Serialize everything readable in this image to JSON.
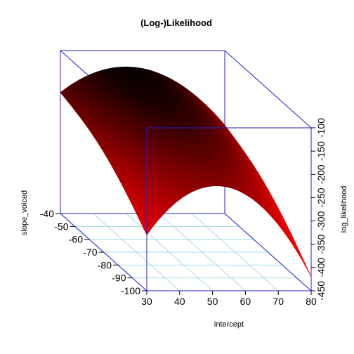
{
  "chart_data": {
    "type": "surface",
    "title": "(Log-)Likelihood",
    "xlabel": "intercept",
    "ylabel": "slope_voiced",
    "zlabel": "log_likelihood",
    "x_ticks": [
      "30",
      "40",
      "50",
      "60",
      "70",
      "80"
    ],
    "y_ticks": [
      "-40",
      "-50",
      "-60",
      "-70",
      "-80",
      "-90",
      "-100"
    ],
    "z_ticks": [
      "-100",
      "-150",
      "-200",
      "-250",
      "-300",
      "-350",
      "-400",
      "-450"
    ],
    "xlim": [
      30,
      80
    ],
    "ylim": [
      -100,
      -40
    ],
    "zlim": [
      -450,
      -100
    ],
    "corner_values": [
      {
        "x": 30,
        "y": -100,
        "z": -330
      },
      {
        "x": 80,
        "y": -100,
        "z": -420
      },
      {
        "x": 30,
        "y": -40,
        "z": -190
      },
      {
        "x": 80,
        "y": -40,
        "z": -260
      }
    ],
    "peak_values": [
      {
        "x": 50,
        "y": -100,
        "z": -225
      },
      {
        "x": 50,
        "y": -40,
        "z": -135
      }
    ],
    "colors": {
      "box": "#2222cc",
      "floor_grid": "#a8d8e8",
      "surface_low": "#ff0000",
      "surface_high": "#000000"
    }
  }
}
